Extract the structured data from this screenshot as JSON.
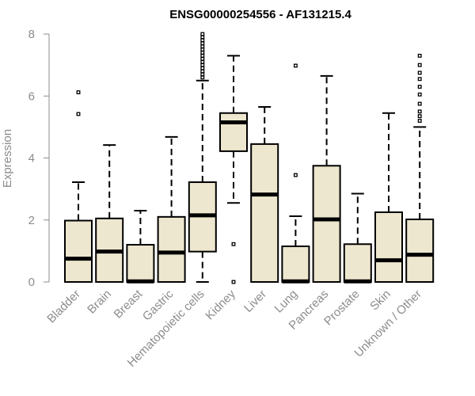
{
  "chart_data": {
    "type": "boxplot",
    "title": "ENSG00000254556 - AF131215.4",
    "ylabel": "Expression",
    "xlabel": "",
    "ylim": [
      0,
      8
    ],
    "yticks": [
      0,
      2,
      4,
      6,
      8
    ],
    "colors": {
      "box_fill": "#ede7cf",
      "box_stroke": "#000000",
      "axis": "#8c8c8c"
    },
    "categories": [
      "Bladder",
      "Brain",
      "Breast",
      "Gastric",
      "Hematopoietic cells",
      "Kidney",
      "Liver",
      "Lung",
      "Pancreas",
      "Prostate",
      "Skin",
      "Unknown / Other"
    ],
    "boxes": [
      {
        "min": 0,
        "q1": 0,
        "median": 0.75,
        "q3": 1.98,
        "max": 3.22,
        "outliers": [
          5.42,
          6.12
        ]
      },
      {
        "min": 0,
        "q1": 0,
        "median": 0.98,
        "q3": 2.05,
        "max": 4.42,
        "outliers": []
      },
      {
        "min": 0,
        "q1": 0,
        "median": 0.02,
        "q3": 1.2,
        "max": 2.3,
        "outliers": []
      },
      {
        "min": 0,
        "q1": 0,
        "median": 0.95,
        "q3": 2.1,
        "max": 4.68,
        "outliers": []
      },
      {
        "min": 0,
        "q1": 0.98,
        "median": 2.15,
        "q3": 3.22,
        "max": 6.5,
        "outliers": [
          6.6,
          6.7,
          6.8,
          6.9,
          7.0,
          7.1,
          7.2,
          7.3,
          7.4,
          7.5,
          7.6,
          7.7,
          7.8,
          7.9,
          8.0
        ]
      },
      {
        "min": 2.55,
        "q1": 4.22,
        "median": 5.15,
        "q3": 5.45,
        "max": 7.3,
        "outliers": [
          1.22,
          0.0
        ]
      },
      {
        "min": 0,
        "q1": 0,
        "median": 2.82,
        "q3": 4.45,
        "max": 5.65,
        "outliers": []
      },
      {
        "min": 0,
        "q1": 0,
        "median": 0.02,
        "q3": 1.15,
        "max": 2.12,
        "outliers": [
          3.45,
          6.98
        ]
      },
      {
        "min": 0,
        "q1": 0,
        "median": 2.02,
        "q3": 3.75,
        "max": 6.65,
        "outliers": []
      },
      {
        "min": 0,
        "q1": 0,
        "median": 0.02,
        "q3": 1.22,
        "max": 2.85,
        "outliers": []
      },
      {
        "min": 0,
        "q1": 0,
        "median": 0.7,
        "q3": 2.25,
        "max": 5.45,
        "outliers": []
      },
      {
        "min": 0,
        "q1": 0,
        "median": 0.88,
        "q3": 2.02,
        "max": 5.0,
        "outliers": [
          5.2,
          5.35,
          5.5,
          5.75,
          6.05,
          6.3,
          6.55,
          6.75,
          7.0,
          7.3
        ]
      }
    ]
  }
}
